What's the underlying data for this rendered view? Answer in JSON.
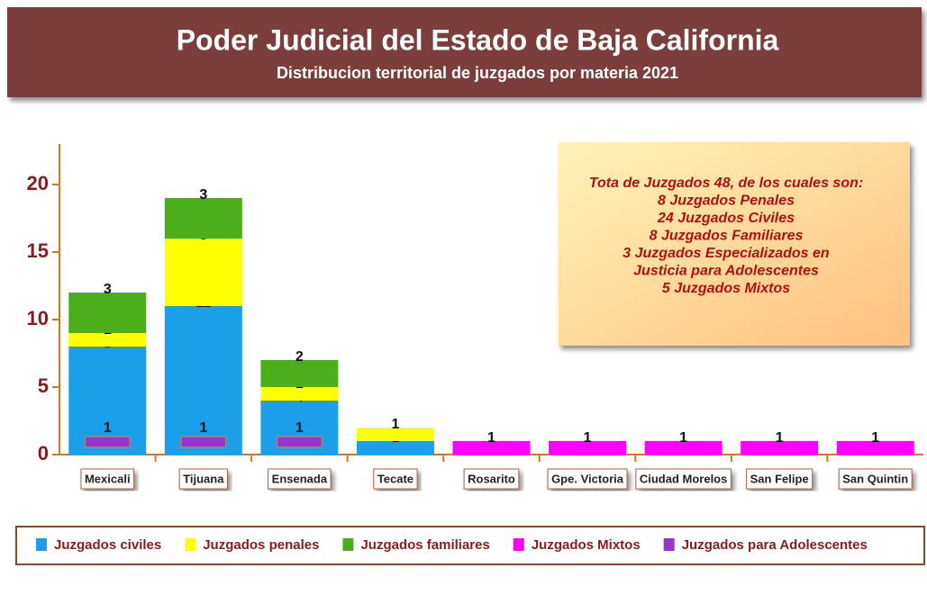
{
  "chart_data": {
    "type": "bar",
    "stacked": true,
    "title": "Poder Judicial del Estado de Baja California",
    "subtitle": "Distribucion territorial de juzgados por materia 2021",
    "annotation": [
      "Tota de Juzgados 48, de los cuales son:",
      "8 Juzgados Penales",
      "24 Juzgados Civiles",
      "8 Juzgados Familiares",
      "3 Juzgados Especializados en",
      "Justicia para Adolescentes",
      "5 Juzgados Mixtos"
    ],
    "categories": [
      "Mexicali",
      "Tijuana",
      "Ensenada",
      "Tecate",
      "Rosarito",
      "Gpe. Victoria",
      "Ciudad Morelos",
      "San Felipe",
      "San Quintin"
    ],
    "series": [
      {
        "name": "Juzgados civiles",
        "color": "#1a9fe8",
        "values": [
          8,
          11,
          4,
          1,
          null,
          null,
          null,
          null,
          null
        ]
      },
      {
        "name": "Juzgados penales",
        "color": "#ffff00",
        "values": [
          1,
          5,
          1,
          1,
          null,
          null,
          null,
          null,
          null
        ]
      },
      {
        "name": "Juzgados familiares",
        "color": "#4caf1a",
        "values": [
          3,
          3,
          2,
          null,
          null,
          null,
          null,
          null,
          null
        ]
      },
      {
        "name": "Juzgados Mixtos",
        "color": "#ff00ff",
        "values": [
          null,
          null,
          null,
          null,
          1,
          1,
          1,
          1,
          1
        ]
      },
      {
        "name": "Juzgados para Adolescentes",
        "color": "#9933cc",
        "stacked": false,
        "values": [
          1,
          1,
          1,
          null,
          null,
          null,
          null,
          null,
          null
        ]
      }
    ],
    "ylim": [
      0,
      23
    ],
    "yticks": [
      0,
      5,
      10,
      15,
      20
    ],
    "legend": "bottom"
  }
}
